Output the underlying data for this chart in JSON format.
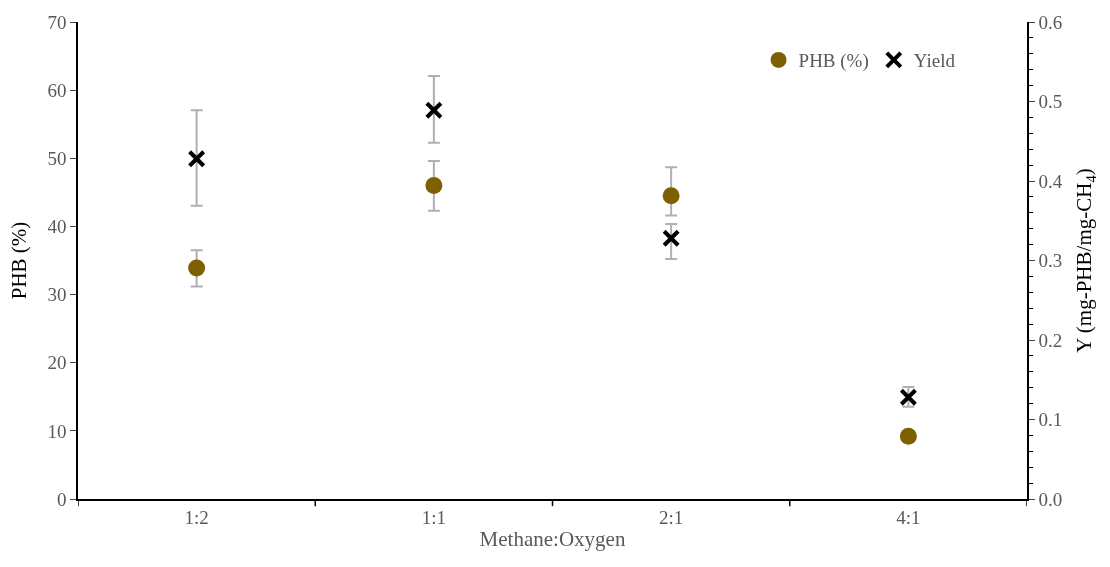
{
  "chart_data": {
    "type": "scatter",
    "xlabel": "Methane:Oxygen",
    "ylabel": "PHB (%)",
    "y2label": "Y (mg-PHB/mg-CH$_{4}$)",
    "categories": [
      "1:2",
      "1:1",
      "2:1",
      "4:1"
    ],
    "series": [
      {
        "name": "PHB (%)",
        "color": "#7f6000",
        "marker": "circle",
        "values": [
          33.9,
          46.0,
          44.5,
          9.2
        ],
        "errors": [
          [
            31.2,
            36.5
          ],
          [
            42.3,
            49.6
          ],
          [
            41.6,
            48.7
          ],
          null
        ]
      },
      {
        "name": "Yield",
        "color": "#000000",
        "marker": "cross",
        "axis": "y2",
        "values": [
          0.428,
          0.489,
          0.328,
          0.128
        ],
        "errors": [
          [
            0.369,
            0.489
          ],
          [
            0.448,
            0.532
          ],
          [
            0.302,
            0.346
          ],
          [
            0.116,
            0.141
          ]
        ]
      }
    ],
    "ylim": [
      0,
      70
    ],
    "yticks": [
      0,
      10,
      20,
      30,
      40,
      50,
      60,
      70
    ],
    "y2lim": [
      0,
      0.6
    ],
    "y2ticks": [
      {
        "value": 0,
        "label": "0.0"
      },
      {
        "value": 0.1,
        "label": "0.1"
      },
      {
        "value": 0.2,
        "label": "0.2"
      },
      {
        "value": 0.3,
        "label": "0.3"
      },
      {
        "value": 0.4,
        "label": "0.4"
      },
      {
        "value": 0.5,
        "label": "0.5"
      },
      {
        "value": 0.6,
        "label": "0.6"
      }
    ],
    "legend": "top right"
  }
}
